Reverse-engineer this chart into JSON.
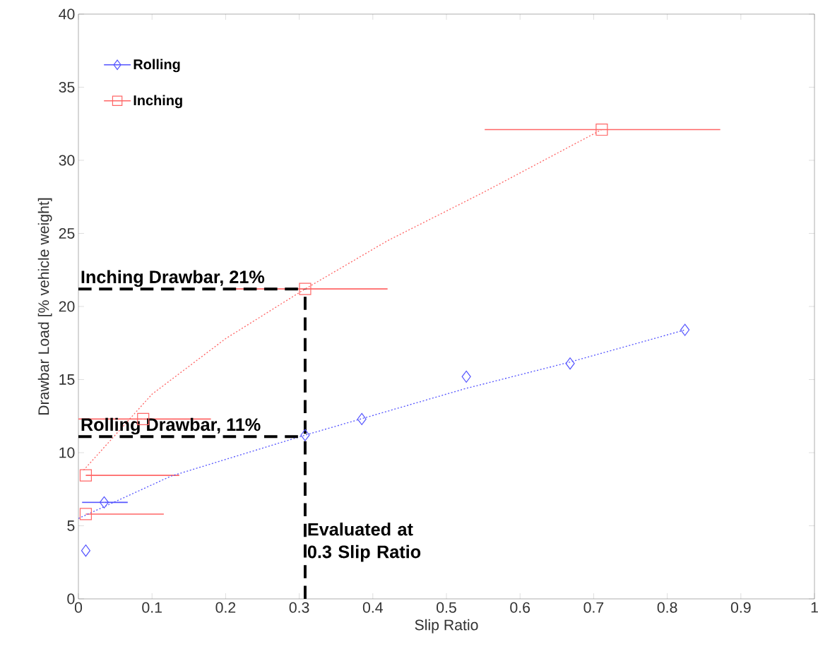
{
  "chart_data": {
    "type": "scatter",
    "xlabel": "Slip Ratio",
    "ylabel": "Drawbar Load [% vehicle weight]",
    "xlim": [
      0,
      1
    ],
    "ylim": [
      0,
      40
    ],
    "xticks": [
      0,
      0.1,
      0.2,
      0.3,
      0.4,
      0.5,
      0.6,
      0.7,
      0.8,
      0.9,
      1
    ],
    "yticks": [
      0,
      5,
      10,
      15,
      20,
      25,
      30,
      35,
      40
    ],
    "legend": "top left",
    "grid": false,
    "series": [
      {
        "name": "Rolling",
        "marker": "diamond",
        "color": "#5555ff",
        "x": [
          0.01,
          0.035,
          0.308,
          0.385,
          0.527,
          0.668,
          0.824
        ],
        "values": [
          3.3,
          6.6,
          11.2,
          12.3,
          15.2,
          16.1,
          18.4
        ],
        "xerrors": [
          null,
          [
            0.005,
            0.067
          ],
          null,
          null,
          null,
          null,
          null
        ]
      },
      {
        "name": "Inching",
        "marker": "square",
        "color": "#ff6666",
        "x": [
          0.01,
          0.01,
          0.088,
          0.308,
          0.711
        ],
        "values": [
          5.8,
          8.45,
          12.3,
          21.2,
          32.1
        ],
        "xerrors": [
          [
            0.01,
            0.116
          ],
          [
            0.01,
            0.137
          ],
          [
            0,
            0.18
          ],
          [
            0.197,
            0.42
          ],
          [
            0.552,
            0.872
          ]
        ]
      },
      {
        "type": "line",
        "line_style": "dotted",
        "marker": "none",
        "color": "#5555ff",
        "x": [
          0,
          0.126,
          0.308,
          0.527,
          0.668,
          0.824
        ],
        "values": [
          5.5,
          8.4,
          11.2,
          14.4,
          16.2,
          18.4
        ]
      },
      {
        "type": "line",
        "line_style": "dotted",
        "marker": "none",
        "color": "#ff6666",
        "x": [
          0.007,
          0.1,
          0.2,
          0.308,
          0.42,
          0.55,
          0.711
        ],
        "values": [
          8.8,
          14.0,
          17.8,
          21.2,
          24.5,
          27.8,
          32.1
        ]
      }
    ],
    "ref_lines": [
      {
        "axis": "y",
        "value": 21.2,
        "label": "Inching Drawbar, 21%",
        "color": "#000000",
        "line_style": "dashed"
      },
      {
        "axis": "y",
        "value": 11.1,
        "label": "Rolling Drawbar, 11%",
        "color": "#000000",
        "line_style": "dashed"
      },
      {
        "axis": "x",
        "value": 0.308,
        "label": "Evaluated at 0.3 Slip Ratio",
        "color": "#000000",
        "line_style": "dashed"
      }
    ]
  }
}
